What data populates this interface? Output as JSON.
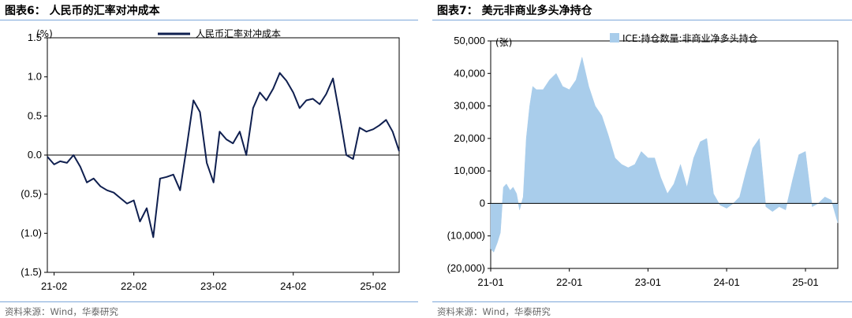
{
  "panels": [
    {
      "fig_title": "图表6：  人民币的汇率对冲成本",
      "source": "资料来源：Wind，华泰研究"
    },
    {
      "fig_title": "图表7：  美元非商业多头净持仓",
      "source": "资料来源：Wind，华泰研究"
    }
  ],
  "colors": {
    "rule": "#7da7d9",
    "line": "#0f1f4f",
    "bar": "#a9cdeb"
  },
  "chart_data": [
    {
      "type": "line",
      "unit_label": "(%)",
      "x_tick_labels": [
        "21-02",
        "22-02",
        "23-02",
        "24-02",
        "25-02"
      ],
      "y_tick_labels": [
        "1.5",
        "1.0",
        "0.5",
        "0.0",
        "(0.5)",
        "(1.0)",
        "(1.5)"
      ],
      "y_ticks": [
        1.5,
        1.0,
        0.5,
        0.0,
        -0.5,
        -1.0,
        -1.5
      ],
      "ylim": [
        -1.5,
        1.5
      ],
      "xlim": [
        "2021-01-01",
        "2025-05-31"
      ],
      "x_tick_dates": [
        "2021-02-01",
        "2022-02-01",
        "2023-02-01",
        "2024-02-01",
        "2025-02-01"
      ],
      "legend_position": "top-right",
      "series": [
        {
          "name": "人民币汇率对冲成本",
          "x": [
            "2021-01-01",
            "2021-02-01",
            "2021-03-01",
            "2021-04-01",
            "2021-05-01",
            "2021-06-01",
            "2021-07-01",
            "2021-08-01",
            "2021-09-01",
            "2021-10-01",
            "2021-11-01",
            "2021-12-01",
            "2022-01-01",
            "2022-02-01",
            "2022-03-01",
            "2022-04-01",
            "2022-05-01",
            "2022-06-01",
            "2022-07-01",
            "2022-08-01",
            "2022-09-01",
            "2022-10-01",
            "2022-11-01",
            "2022-12-01",
            "2023-01-01",
            "2023-02-01",
            "2023-03-01",
            "2023-04-01",
            "2023-05-01",
            "2023-06-01",
            "2023-07-01",
            "2023-08-01",
            "2023-09-01",
            "2023-10-01",
            "2023-11-01",
            "2023-12-01",
            "2024-01-01",
            "2024-02-01",
            "2024-03-01",
            "2024-04-01",
            "2024-05-01",
            "2024-06-01",
            "2024-07-01",
            "2024-08-01",
            "2024-09-01",
            "2024-10-01",
            "2024-11-01",
            "2024-12-01",
            "2025-01-01",
            "2025-02-01",
            "2025-03-01",
            "2025-04-01",
            "2025-05-01",
            "2025-05-31"
          ],
          "y": [
            -0.02,
            -0.12,
            -0.08,
            -0.1,
            0.0,
            -0.15,
            -0.35,
            -0.3,
            -0.4,
            -0.45,
            -0.48,
            -0.55,
            -0.62,
            -0.58,
            -0.85,
            -0.68,
            -1.05,
            -0.3,
            -0.28,
            -0.25,
            -0.45,
            0.1,
            0.7,
            0.55,
            -0.1,
            -0.35,
            0.3,
            0.2,
            0.15,
            0.3,
            0.0,
            0.6,
            0.8,
            0.7,
            0.85,
            1.05,
            0.95,
            0.8,
            0.6,
            0.7,
            0.72,
            0.65,
            0.78,
            0.98,
            0.5,
            0.0,
            -0.05,
            0.35,
            0.3,
            0.33,
            0.38,
            0.45,
            0.3,
            0.05
          ]
        }
      ]
    },
    {
      "type": "area",
      "unit_label": "(张)",
      "x_tick_labels": [
        "21-01",
        "22-01",
        "23-01",
        "24-01",
        "25-01"
      ],
      "y_tick_labels": [
        "50,000",
        "40,000",
        "30,000",
        "20,000",
        "10,000",
        "0",
        "(10,000)",
        "(20,000)"
      ],
      "y_ticks": [
        50000,
        40000,
        30000,
        20000,
        10000,
        0,
        -10000,
        -20000
      ],
      "ylim": [
        -20000,
        50000
      ],
      "xlim": [
        "2021-01-01",
        "2025-05-31"
      ],
      "x_tick_dates": [
        "2021-01-01",
        "2022-01-01",
        "2023-01-01",
        "2024-01-01",
        "2025-01-01"
      ],
      "legend_position": "top-right",
      "series": [
        {
          "name": "ICE:持仓数量:非商业净多头持仓",
          "x": [
            "2021-01-01",
            "2021-01-15",
            "2021-02-01",
            "2021-02-15",
            "2021-03-01",
            "2021-03-15",
            "2021-04-01",
            "2021-04-15",
            "2021-05-01",
            "2021-05-15",
            "2021-06-01",
            "2021-06-15",
            "2021-07-01",
            "2021-07-15",
            "2021-08-01",
            "2021-09-01",
            "2021-10-01",
            "2021-11-01",
            "2021-12-01",
            "2022-01-01",
            "2022-02-01",
            "2022-03-01",
            "2022-04-01",
            "2022-05-01",
            "2022-06-01",
            "2022-07-01",
            "2022-08-01",
            "2022-09-01",
            "2022-10-01",
            "2022-11-01",
            "2022-12-01",
            "2023-01-01",
            "2023-02-01",
            "2023-03-01",
            "2023-04-01",
            "2023-05-01",
            "2023-06-01",
            "2023-07-01",
            "2023-08-01",
            "2023-09-01",
            "2023-10-01",
            "2023-11-01",
            "2023-12-01",
            "2024-01-01",
            "2024-02-01",
            "2024-03-01",
            "2024-04-01",
            "2024-05-01",
            "2024-06-01",
            "2024-07-01",
            "2024-08-01",
            "2024-09-01",
            "2024-10-01",
            "2024-11-01",
            "2024-12-01",
            "2025-01-01",
            "2025-02-01",
            "2025-03-01",
            "2025-04-01",
            "2025-05-01",
            "2025-05-31"
          ],
          "y": [
            -14000,
            -15000,
            -12000,
            -9000,
            5000,
            6000,
            4000,
            5000,
            3000,
            -2000,
            2000,
            20000,
            30000,
            36000,
            35000,
            35000,
            38000,
            40000,
            36000,
            35000,
            38000,
            45000,
            36000,
            30000,
            27000,
            21000,
            14000,
            12000,
            11000,
            12000,
            16000,
            14000,
            14000,
            8000,
            3000,
            6000,
            12000,
            5000,
            14000,
            19000,
            20000,
            3000,
            -500,
            -1500,
            0,
            2000,
            10000,
            17000,
            20000,
            -1000,
            -2500,
            -1000,
            -2000,
            7000,
            15000,
            16000,
            -1000,
            0,
            2000,
            1000,
            -6000
          ]
        }
      ]
    }
  ]
}
